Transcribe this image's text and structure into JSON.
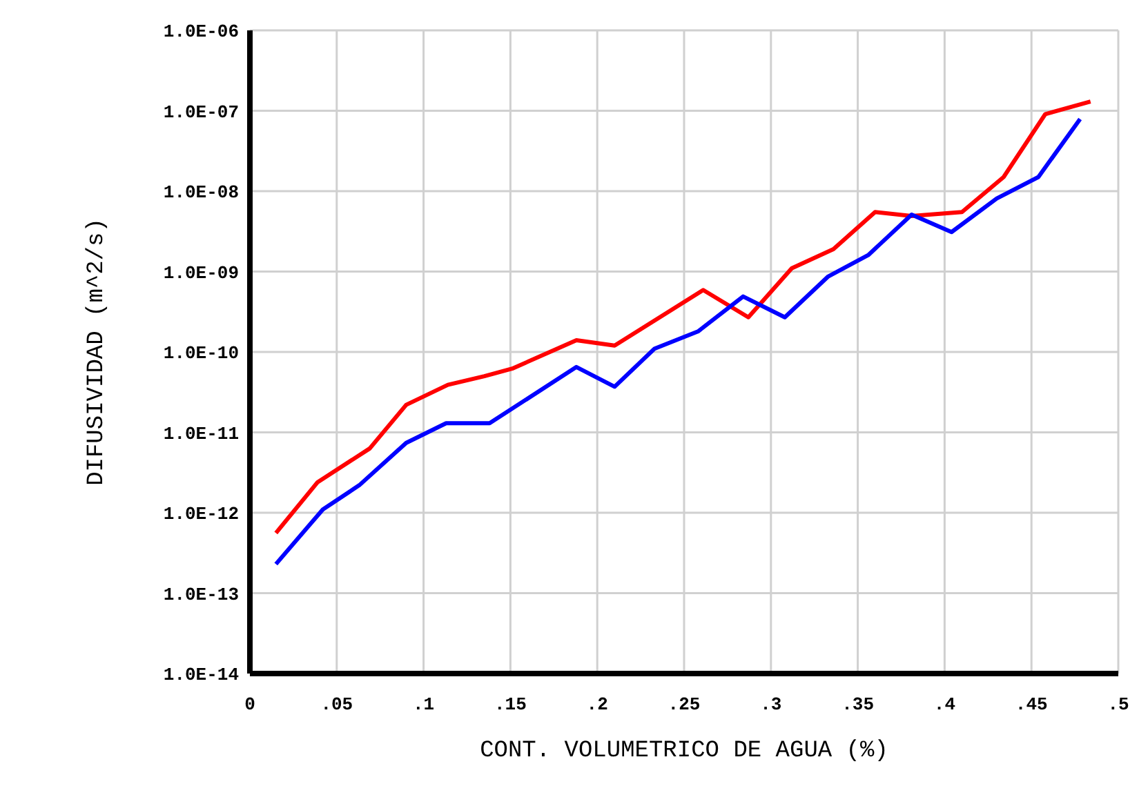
{
  "chart_data": {
    "type": "line",
    "xlabel": "CONT. VOLUMETRICO DE AGUA (%)",
    "ylabel": "DIFUSIVIDAD (m^2/s)",
    "log": "y",
    "grid": true,
    "marker": "none",
    "line_style": "solid",
    "xlim": [
      0,
      0.5
    ],
    "xticks": [
      0,
      {
        "value": 0.05,
        "label": ".05"
      },
      {
        "value": 0.1,
        "label": ".1"
      },
      {
        "value": 0.15,
        "label": ".15"
      },
      {
        "value": 0.2,
        "label": ".2"
      },
      {
        "value": 0.25,
        "label": ".25"
      },
      {
        "value": 0.3,
        "label": ".3"
      },
      {
        "value": 0.35,
        "label": ".35"
      },
      {
        "value": 0.4,
        "label": ".4"
      },
      {
        "value": 0.45,
        "label": ".45"
      },
      {
        "value": 0.5,
        "label": ".5"
      }
    ],
    "ylim": [
      1e-14,
      1e-06
    ],
    "yticks": [
      {
        "value": 1e-14,
        "label": "1.0E-14"
      },
      {
        "value": 1e-13,
        "label": "1.0E-13"
      },
      {
        "value": 1e-12,
        "label": "1.0E-12"
      },
      {
        "value": 1e-11,
        "label": "1.0E-11"
      },
      {
        "value": 1e-10,
        "label": "1.0E-10"
      },
      {
        "value": 1e-09,
        "label": "1.0E-09"
      },
      {
        "value": 1e-08,
        "label": "1.0E-08"
      },
      {
        "value": 1e-07,
        "label": "1.0E-07"
      },
      {
        "value": 1e-06,
        "label": "1.0E-06"
      }
    ],
    "series": [
      {
        "color": "#ff0000",
        "x": [
          0.015,
          0.039,
          0.069,
          0.09,
          0.114,
          0.135,
          0.151,
          0.188,
          0.21,
          0.261,
          0.287,
          0.312,
          0.336,
          0.36,
          0.381,
          0.41,
          0.434,
          0.458,
          0.484
        ],
        "values": [
          5.6e-13,
          2.4e-12,
          6.3e-12,
          2.2e-11,
          3.9e-11,
          5e-11,
          6.2e-11,
          1.4e-10,
          1.2e-10,
          5.9e-10,
          2.7e-10,
          1.1e-09,
          1.9e-09,
          5.5e-09,
          4.9e-09,
          5.5e-09,
          1.5e-08,
          9.1e-08,
          1.3e-07
        ]
      },
      {
        "color": "#0000ff",
        "x": [
          0.015,
          0.042,
          0.063,
          0.09,
          0.113,
          0.138,
          0.188,
          0.21,
          0.233,
          0.258,
          0.284,
          0.308,
          0.333,
          0.356,
          0.381,
          0.404,
          0.43,
          0.454,
          0.478
        ],
        "values": [
          2.3e-13,
          1.1e-12,
          2.2e-12,
          7.4e-12,
          1.3e-11,
          1.3e-11,
          6.5e-11,
          3.7e-11,
          1.1e-10,
          1.8e-10,
          4.9e-10,
          2.7e-10,
          8.7e-10,
          1.6e-09,
          5.1e-09,
          3.1e-09,
          8.1e-09,
          1.5e-08,
          7.9e-08
        ]
      }
    ]
  }
}
